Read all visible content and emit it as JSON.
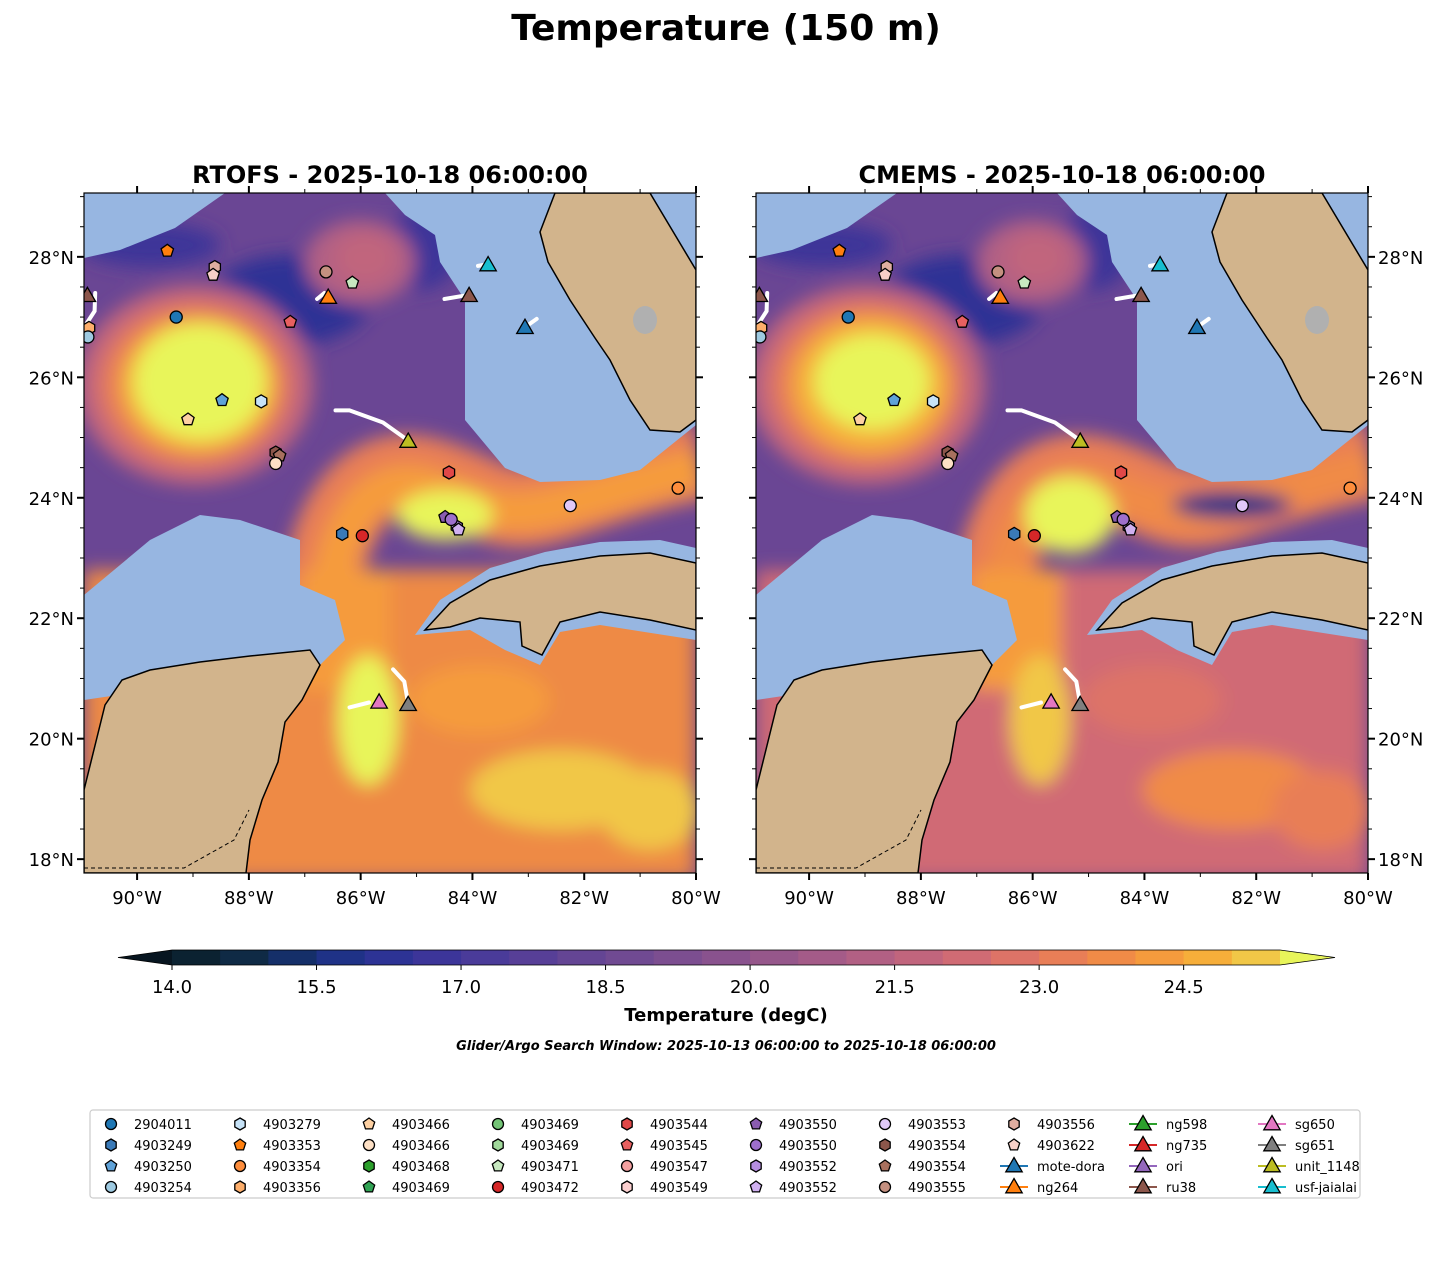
{
  "title": "Temperature (150 m)",
  "panels": [
    {
      "id": "rtofs",
      "title": "RTOFS - 2025-10-18 06:00:00"
    },
    {
      "id": "cmems",
      "title": "CMEMS - 2025-10-18 06:00:00"
    }
  ],
  "axes": {
    "lon_range": [
      -90.95,
      -80.0
    ],
    "lat_range": [
      17.77,
      29.06
    ],
    "lon_ticks": [
      {
        "v": -90,
        "label": "90°W"
      },
      {
        "v": -88,
        "label": "88°W"
      },
      {
        "v": -86,
        "label": "86°W"
      },
      {
        "v": -84,
        "label": "84°W"
      },
      {
        "v": -82,
        "label": "82°W"
      },
      {
        "v": -80,
        "label": "80°W"
      }
    ],
    "lat_ticks": [
      {
        "v": 18,
        "label": "18°N"
      },
      {
        "v": 20,
        "label": "20°N"
      },
      {
        "v": 22,
        "label": "22°N"
      },
      {
        "v": 24,
        "label": "24°N"
      },
      {
        "v": 26,
        "label": "26°N"
      },
      {
        "v": 28,
        "label": "28°N"
      }
    ]
  },
  "colorbar": {
    "label": "Temperature (degC)",
    "min": 14.0,
    "max": 25.5,
    "step": 0.5,
    "ticks": [
      {
        "v": 14.0,
        "label": "14.0"
      },
      {
        "v": 15.5,
        "label": "15.5"
      },
      {
        "v": 17.0,
        "label": "17.0"
      },
      {
        "v": 18.5,
        "label": "18.5"
      },
      {
        "v": 20.0,
        "label": "20.0"
      },
      {
        "v": 21.5,
        "label": "21.5"
      },
      {
        "v": 23.0,
        "label": "23.0"
      },
      {
        "v": 24.5,
        "label": "24.5"
      }
    ],
    "colors": [
      "#0b2231",
      "#0f2a45",
      "#152f69",
      "#1f3287",
      "#2d3395",
      "#3c3599",
      "#4a3b99",
      "#573f97",
      "#644594",
      "#704a92",
      "#7c4e90",
      "#89528e",
      "#96578b",
      "#a45b88",
      "#b26084",
      "#c1657d",
      "#d06b74",
      "#dd7367",
      "#e87e57",
      "#f08b47",
      "#f59b3d",
      "#f6ae3a",
      "#f1c747"
    ],
    "under_color": "#071520",
    "over_color": "#e8f55a"
  },
  "search_window": "Glider/Argo Search Window: 2025-10-13 06:00:00 to 2025-10-18 06:00:00",
  "legend": [
    {
      "label": "2904011",
      "marker": "circle",
      "color": "#1f77b4"
    },
    {
      "label": "4903249",
      "marker": "hexagon",
      "color": "#3a7ab8"
    },
    {
      "label": "4903250",
      "marker": "pentagon",
      "color": "#5fa2d8"
    },
    {
      "label": "4903254",
      "marker": "circle",
      "color": "#9ecae1"
    },
    {
      "label": "4903279",
      "marker": "hexagon",
      "color": "#c6e2f7"
    },
    {
      "label": "4903353",
      "marker": "pentagon",
      "color": "#ff7f0e"
    },
    {
      "label": "4903354",
      "marker": "circle",
      "color": "#fd8d3c"
    },
    {
      "label": "4903356",
      "marker": "hexagon",
      "color": "#fdae6b"
    },
    {
      "label": "4903466",
      "marker": "pentagon",
      "color": "#fdd0a2"
    },
    {
      "label": "4903466",
      "marker": "circle",
      "color": "#fde0c5"
    },
    {
      "label": "4903468",
      "marker": "hexagon",
      "color": "#2ca02c"
    },
    {
      "label": "4903469",
      "marker": "pentagon",
      "color": "#31a354"
    },
    {
      "label": "4903469",
      "marker": "circle",
      "color": "#74c476"
    },
    {
      "label": "4903469",
      "marker": "hexagon",
      "color": "#a1d99b"
    },
    {
      "label": "4903471",
      "marker": "pentagon",
      "color": "#c7e9c0"
    },
    {
      "label": "4903472",
      "marker": "circle",
      "color": "#d62728"
    },
    {
      "label": "4903544",
      "marker": "hexagon",
      "color": "#e04848"
    },
    {
      "label": "4903545",
      "marker": "pentagon",
      "color": "#e86060"
    },
    {
      "label": "4903547",
      "marker": "circle",
      "color": "#f4a0a0"
    },
    {
      "label": "4903549",
      "marker": "hexagon",
      "color": "#fcd0d0"
    },
    {
      "label": "4903550",
      "marker": "pentagon",
      "color": "#8a5cb0"
    },
    {
      "label": "4903550",
      "marker": "circle",
      "color": "#9e6fcc"
    },
    {
      "label": "4903552",
      "marker": "hexagon",
      "color": "#b68ee0"
    },
    {
      "label": "4903552",
      "marker": "pentagon",
      "color": "#d0b0f0"
    },
    {
      "label": "4903553",
      "marker": "circle",
      "color": "#e0c8f8"
    },
    {
      "label": "4903554",
      "marker": "hexagon",
      "color": "#8c564b"
    },
    {
      "label": "4903554",
      "marker": "pentagon",
      "color": "#a8705e"
    },
    {
      "label": "4903555",
      "marker": "circle",
      "color": "#c49080"
    },
    {
      "label": "4903556",
      "marker": "hexagon",
      "color": "#e0aea0"
    },
    {
      "label": "4903622",
      "marker": "pentagon",
      "color": "#f8d0c8"
    },
    {
      "label": "mote-dora",
      "marker": "triangle-line",
      "color": "#1f77b4"
    },
    {
      "label": "ng264",
      "marker": "triangle-line",
      "color": "#ff7f0e"
    },
    {
      "label": "ng598",
      "marker": "triangle-line",
      "color": "#2ca02c"
    },
    {
      "label": "ng735",
      "marker": "triangle-line",
      "color": "#d62728"
    },
    {
      "label": "ori",
      "marker": "triangle-line",
      "color": "#9467bd"
    },
    {
      "label": "ru38",
      "marker": "triangle-line",
      "color": "#8c564b"
    },
    {
      "label": "sg650",
      "marker": "triangle-line",
      "color": "#e377c2"
    },
    {
      "label": "sg651",
      "marker": "triangle-line",
      "color": "#7f7f7f"
    },
    {
      "label": "unit_1148",
      "marker": "triangle-line",
      "color": "#bcbd22"
    },
    {
      "label": "usf-jaialai",
      "marker": "triangle-line",
      "color": "#17becf"
    }
  ],
  "observations": [
    {
      "legend": 0,
      "lon": -89.3,
      "lat": 27.0
    },
    {
      "legend": 35,
      "lon": -90.89,
      "lat": 27.37
    },
    {
      "legend": 7,
      "lon": -90.86,
      "lat": 26.82
    },
    {
      "legend": 3,
      "lon": -90.88,
      "lat": 26.67
    },
    {
      "legend": 5,
      "lon": -89.46,
      "lat": 28.1
    },
    {
      "legend": 28,
      "lon": -88.61,
      "lat": 27.83
    },
    {
      "legend": 29,
      "lon": -88.64,
      "lat": 27.7
    },
    {
      "legend": 27,
      "lon": -86.62,
      "lat": 27.75
    },
    {
      "legend": 14,
      "lon": -86.15,
      "lat": 27.57
    },
    {
      "legend": 31,
      "lon": -86.58,
      "lat": 27.34
    },
    {
      "legend": 17,
      "lon": -87.26,
      "lat": 26.92
    },
    {
      "legend": 35,
      "lon": -84.06,
      "lat": 27.37
    },
    {
      "legend": 39,
      "lon": -83.72,
      "lat": 27.88
    },
    {
      "legend": 30,
      "lon": -83.06,
      "lat": 26.84
    },
    {
      "legend": 2,
      "lon": -88.48,
      "lat": 25.62
    },
    {
      "legend": 4,
      "lon": -87.78,
      "lat": 25.6
    },
    {
      "legend": 8,
      "lon": -89.09,
      "lat": 25.3
    },
    {
      "legend": 25,
      "lon": -87.52,
      "lat": 24.75
    },
    {
      "legend": 26,
      "lon": -87.45,
      "lat": 24.7
    },
    {
      "legend": 9,
      "lon": -87.52,
      "lat": 24.57
    },
    {
      "legend": 38,
      "lon": -85.15,
      "lat": 24.95
    },
    {
      "legend": 16,
      "lon": -84.42,
      "lat": 24.42
    },
    {
      "legend": 20,
      "lon": -84.49,
      "lat": 23.68
    },
    {
      "legend": 22,
      "lon": -84.28,
      "lat": 23.52
    },
    {
      "legend": 21,
      "lon": -84.38,
      "lat": 23.64
    },
    {
      "legend": 23,
      "lon": -84.25,
      "lat": 23.47
    },
    {
      "legend": 24,
      "lon": -82.25,
      "lat": 23.87
    },
    {
      "legend": 6,
      "lon": -80.32,
      "lat": 24.16
    },
    {
      "legend": 1,
      "lon": -86.33,
      "lat": 23.4
    },
    {
      "legend": 15,
      "lon": -85.97,
      "lat": 23.37
    },
    {
      "legend": 36,
      "lon": -85.67,
      "lat": 20.62
    },
    {
      "legend": 37,
      "lon": -85.15,
      "lat": 20.58
    }
  ],
  "glider_tracks": [
    [
      [
        -86.45,
        25.45
      ],
      [
        -86.2,
        25.45
      ],
      [
        -85.6,
        25.25
      ],
      [
        -85.15,
        24.95
      ]
    ],
    [
      [
        -85.42,
        21.15
      ],
      [
        -85.22,
        20.95
      ],
      [
        -85.15,
        20.58
      ]
    ],
    [
      [
        -86.2,
        20.52
      ],
      [
        -85.85,
        20.6
      ]
    ],
    [
      [
        -84.5,
        27.3
      ],
      [
        -84.06,
        27.37
      ]
    ],
    [
      [
        -86.78,
        27.3
      ],
      [
        -86.65,
        27.4
      ]
    ],
    [
      [
        -90.75,
        27.4
      ],
      [
        -90.76,
        27.1
      ],
      [
        -90.9,
        26.9
      ]
    ],
    [
      [
        -83.0,
        26.87
      ],
      [
        -82.85,
        26.97
      ]
    ],
    [
      [
        -83.9,
        27.85
      ],
      [
        -83.72,
        27.88
      ]
    ]
  ]
}
